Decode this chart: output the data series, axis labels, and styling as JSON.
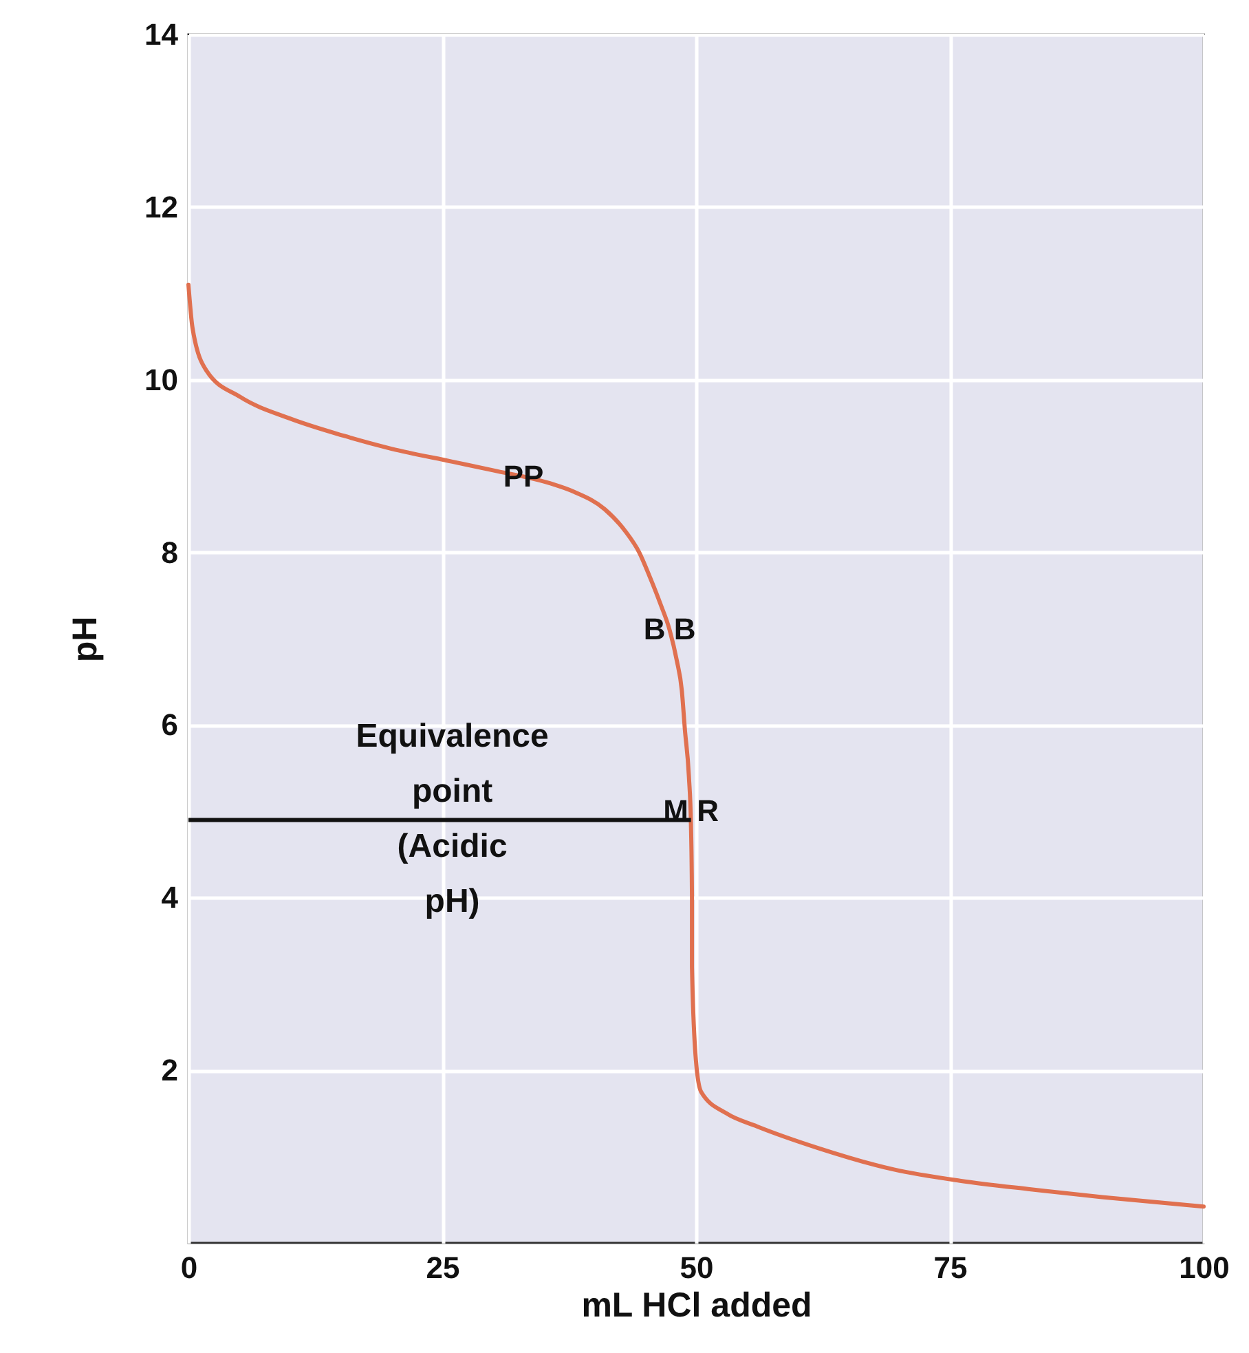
{
  "chart_data": {
    "type": "line",
    "xlabel": "mL HCl added",
    "ylabel": "pH",
    "x": [
      0,
      0.4,
      1.8,
      5.1,
      10,
      15.3,
      20,
      26,
      30,
      35.6,
      38,
      41,
      43,
      44.4,
      45.5,
      46.5,
      47.4,
      48.1,
      48.6,
      48.9,
      49.3,
      49.5,
      49.6,
      49.6,
      50,
      50.5,
      53,
      56,
      62,
      69.5,
      76,
      83,
      90,
      100
    ],
    "series": [
      {
        "color": "#e0704f",
        "values": [
          11.1,
          10.6,
          10.1,
          9.8,
          9.55,
          9.35,
          9.2,
          9.05,
          8.95,
          8.8,
          8.7,
          8.5,
          8.25,
          8,
          7.7,
          7.4,
          7.1,
          6.75,
          6.4,
          5.95,
          5.4,
          4.85,
          4,
          3.2,
          2.1,
          1.75,
          1.5,
          1.35,
          1.1,
          0.85,
          0.72,
          0.62,
          0.53,
          0.42
        ]
      }
    ],
    "xlim": [
      0,
      100
    ],
    "ylim": [
      0,
      14
    ],
    "xticks": [
      0,
      25,
      50,
      75,
      100
    ],
    "yticks": [
      2,
      4,
      6,
      8,
      10,
      12,
      14
    ],
    "grid": true,
    "annotations": [
      {
        "text": "PP",
        "x": 33,
        "y": 8.87
      },
      {
        "text": "B B",
        "x": 47.4,
        "y": 7.1
      },
      {
        "text": "M R",
        "x": 49.5,
        "y": 5
      }
    ],
    "ref_lines": [
      {
        "axis": "y",
        "value": 4.9,
        "label": "Equivalence point (Acidic pH)",
        "color": "#111111"
      }
    ]
  }
}
